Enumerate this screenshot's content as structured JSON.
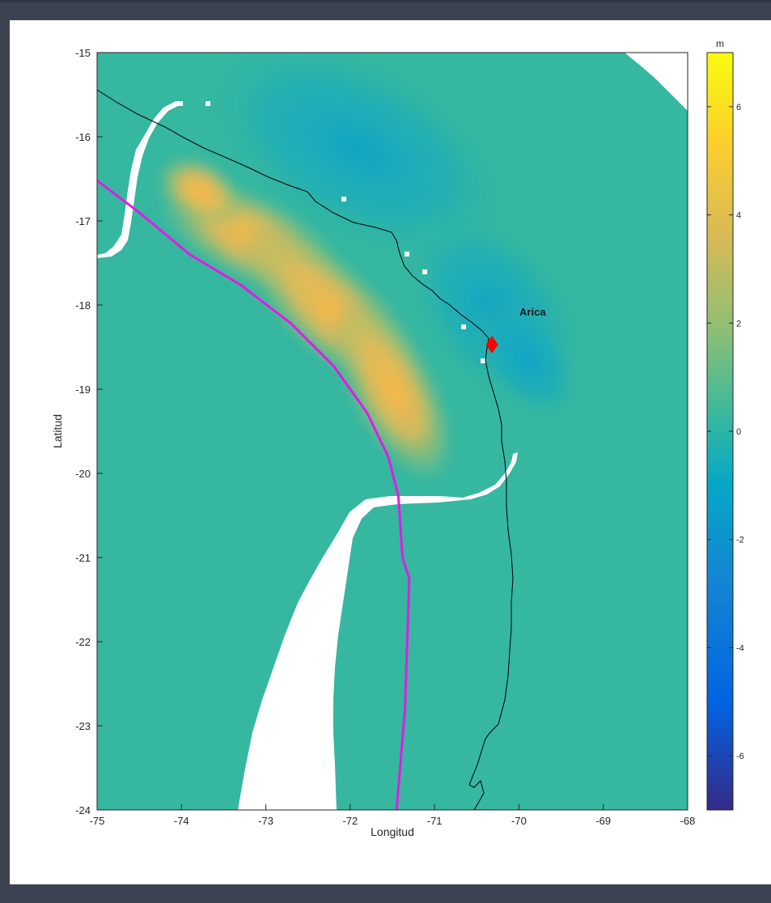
{
  "map": {
    "xlabel": "Longitud",
    "ylabel": "Latitud",
    "xlim": [
      -75,
      -68
    ],
    "ylim": [
      -24,
      -15
    ],
    "xticks": [
      -75,
      -74,
      -73,
      -72,
      -71,
      -70,
      -69,
      -68
    ],
    "yticks": [
      -24,
      -23,
      -22,
      -21,
      -20,
      -19,
      -18,
      -17,
      -16,
      -15
    ],
    "ocean_color": "#35b7a0",
    "land_color": "#ffffff",
    "uplift_color": "#fdb847",
    "subsidence_color": "#13a7c4",
    "trench_color": "#e21be6",
    "coastline_color": "#000000",
    "marker": {
      "label": "Arica",
      "lon": -70.32,
      "lat": -18.47,
      "color": "#ff0000",
      "shape": "diamond"
    },
    "trench_line": [
      [
        -75.0,
        -16.52
      ],
      [
        -74.5,
        -16.9
      ],
      [
        -73.9,
        -17.4
      ],
      [
        -73.3,
        -17.76
      ],
      [
        -72.7,
        -18.22
      ],
      [
        -72.2,
        -18.72
      ],
      [
        -71.8,
        -19.28
      ],
      [
        -71.55,
        -19.8
      ],
      [
        -71.43,
        -20.26
      ],
      [
        -71.38,
        -21.0
      ],
      [
        -71.3,
        -21.25
      ],
      [
        -71.35,
        -22.8
      ],
      [
        -71.45,
        -24.0
      ]
    ]
  },
  "colorbar": {
    "unit": "m",
    "limits": [
      -7,
      7
    ],
    "ticks": [
      6,
      4,
      2,
      0,
      -2,
      -4,
      -6
    ],
    "tick_labels": [
      "6",
      "4",
      "2",
      "0",
      "-2",
      "-4",
      "-6"
    ],
    "colormap": [
      "#352a87",
      "#0363e1",
      "#1485d4",
      "#06a7c6",
      "#38b99e",
      "#92bf73",
      "#d9ba56",
      "#fcce2e",
      "#f9fb0e"
    ]
  }
}
